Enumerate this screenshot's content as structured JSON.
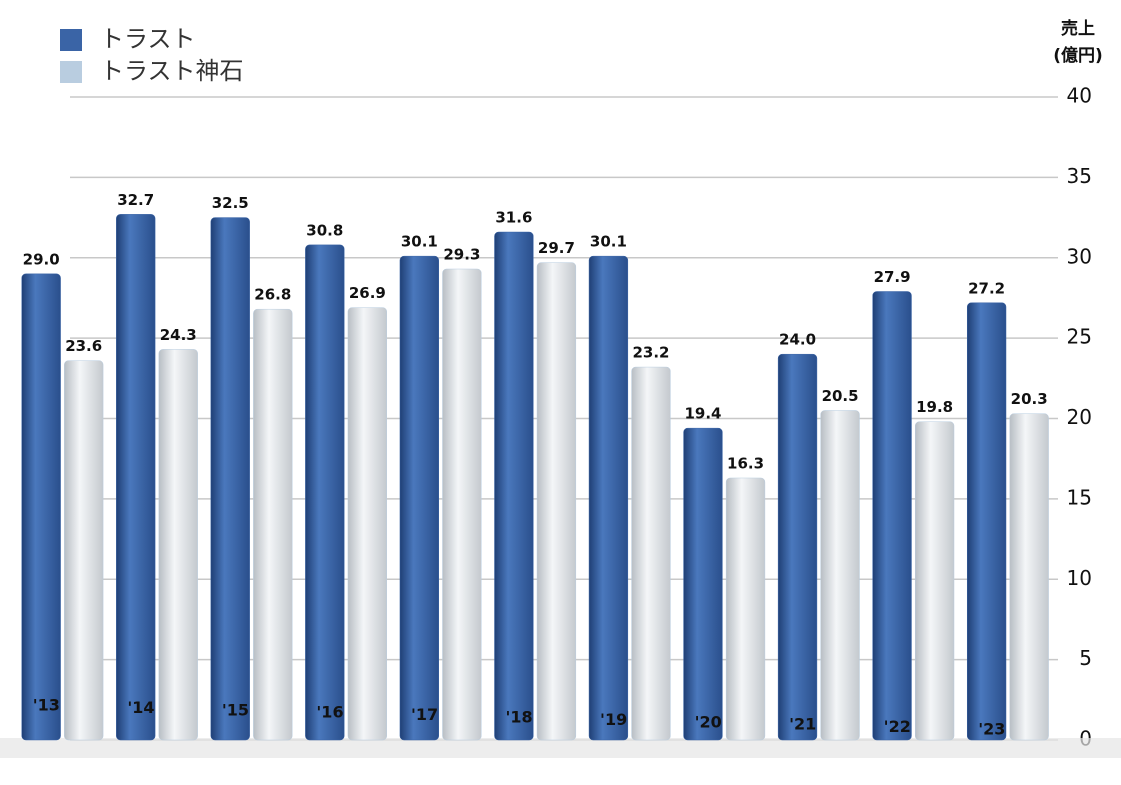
{
  "chart_data": {
    "type": "bar",
    "y_label": "売上",
    "y_unit": "(億円)",
    "categories": [
      "'13",
      "'14",
      "'15",
      "'16",
      "'17",
      "'18",
      "'19",
      "'20",
      "'21",
      "'22",
      "'23"
    ],
    "series": [
      {
        "name": "トラスト",
        "color": "#3a64a6",
        "values": [
          29.0,
          32.7,
          32.5,
          30.8,
          30.1,
          31.6,
          30.1,
          19.4,
          24.0,
          27.9,
          27.2
        ],
        "value_labels": [
          "29.0",
          "32.7",
          "32.5",
          "30.8",
          "30.1",
          "31.6",
          "30.1",
          "19.4",
          "24.0",
          "27.9",
          "27.2"
        ]
      },
      {
        "name": "トラスト神石",
        "color": "#b9cde0",
        "values": [
          23.6,
          24.3,
          26.8,
          26.9,
          29.3,
          29.7,
          23.2,
          16.3,
          20.5,
          19.8,
          20.3
        ],
        "value_labels": [
          "23.6",
          "24.3",
          "26.8",
          "26.9",
          "29.3",
          "29.7",
          "23.2",
          "16.3",
          "20.5",
          "19.8",
          "20.3"
        ]
      }
    ],
    "ylim": [
      0,
      40
    ],
    "yticks": [
      0,
      5,
      10,
      15,
      20,
      25,
      30,
      35,
      40
    ],
    "grid": true,
    "legend": "top-left"
  }
}
